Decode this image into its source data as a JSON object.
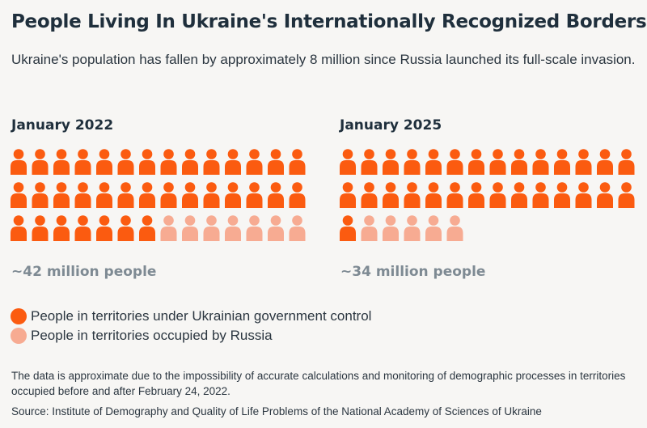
{
  "title": "People Living In Ukraine's Internationally Recognized Borders",
  "subtitle": "Ukraine's population has fallen by approximately 8 million since Russia launched its full-scale invasion.",
  "colors": {
    "controlled": "#fb5b10",
    "occupied": "#f7ab92"
  },
  "chart_data": [
    {
      "type": "pictogram",
      "title": "January 2022",
      "series": [
        {
          "name": "People in territories under Ukrainian government control",
          "value": 35
        },
        {
          "name": "People in territories occupied by Russia",
          "value": 7
        }
      ],
      "unit": "1 icon ≈ 1 million people",
      "total_label": "~42 million people"
    },
    {
      "type": "pictogram",
      "title": "January 2025",
      "series": [
        {
          "name": "People in territories under Ukrainian government control",
          "value": 29
        },
        {
          "name": "People in territories occupied by Russia",
          "value": 5
        }
      ],
      "unit": "1 icon ≈ 1 million people",
      "total_label": "~34 million people"
    }
  ],
  "legend": [
    {
      "label": "People in territories under Ukrainian government control",
      "color": "#fb5b10"
    },
    {
      "label": "People in territories occupied by Russia",
      "color": "#f7ab92"
    }
  ],
  "note": "The data is approximate due to the impossibility of accurate calculations and monitoring of demographic processes in territories occupied before and after February 24, 2022.",
  "source": "Source: Institute of Demography and Quality of Life Problems of the National Academy of Sciences of Ukraine"
}
